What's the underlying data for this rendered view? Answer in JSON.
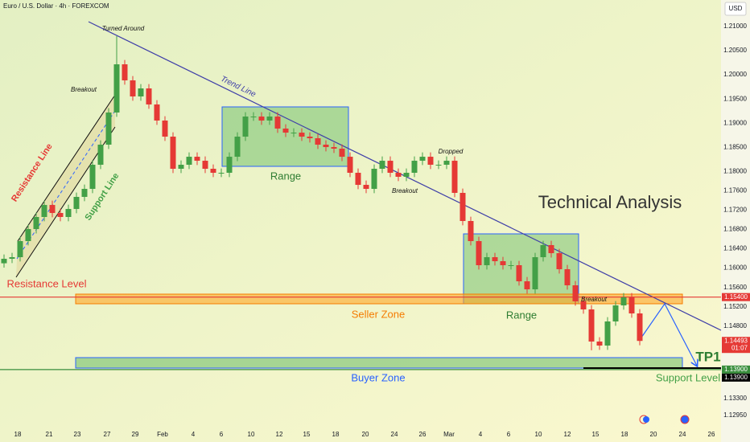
{
  "header": {
    "title": "Euro / U.S. Dollar · 4h · FOREXCOM",
    "currency": "USD"
  },
  "chart_data": {
    "type": "candlestick",
    "open": [
      1.161,
      1.16193,
      1.16226,
      1.16559,
      1.16808,
      1.17058,
      1.17307,
      1.17141,
      1.17058,
      1.17224,
      1.17474,
      1.1764,
      1.18139,
      1.18555,
      1.1922,
      1.20218,
      1.19886,
      1.19553,
      1.19719,
      1.19387,
      1.19054,
      1.18721,
      1.18056,
      1.18139,
      1.18305,
      1.18222,
      1.18056,
      1.17973,
      1.17973,
      1.18305,
      1.18721,
      1.19137,
      1.19137,
      1.19054,
      1.19137,
      1.18888,
      1.18804,
      1.18804,
      1.18721,
      1.18688,
      1.18555,
      1.18505,
      1.18472,
      1.18305,
      1.17973,
      1.17723,
      1.1764,
      1.18056,
      1.18222,
      1.17973,
      1.1789,
      1.17973,
      1.18222,
      1.18305,
      1.18139,
      1.18139,
      1.18222,
      1.17557,
      1.16975,
      1.16559,
      1.1606,
      1.16226,
      1.16143,
      1.1606,
      1.1606,
      1.15727,
      1.15561,
      1.16226,
      1.16476,
      1.16309,
      1.15977,
      1.15644,
      1.15312,
      1.15145,
      1.1448,
      1.14397,
      1.14896,
      1.15228,
      1.15395,
      1.15062
    ],
    "high": [
      1.16283,
      1.16316,
      1.16649,
      1.16898,
      1.17148,
      1.17397,
      1.17397,
      1.17231,
      1.17314,
      1.17564,
      1.1773,
      1.18229,
      1.18645,
      1.1931,
      1.208,
      1.20308,
      1.19976,
      1.19809,
      1.19809,
      1.19477,
      1.19144,
      1.18811,
      1.18229,
      1.18395,
      1.18395,
      1.18312,
      1.18146,
      1.18063,
      1.18395,
      1.18811,
      1.19227,
      1.19227,
      1.19227,
      1.19227,
      1.19227,
      1.18978,
      1.18894,
      1.18894,
      1.18811,
      1.18778,
      1.18645,
      1.18595,
      1.18562,
      1.18395,
      1.18063,
      1.17813,
      1.18146,
      1.18312,
      1.18312,
      1.18063,
      1.18063,
      1.18312,
      1.18395,
      1.18395,
      1.18229,
      1.18312,
      1.18312,
      1.17647,
      1.17065,
      1.16649,
      1.16316,
      1.16316,
      1.16233,
      1.1615,
      1.1615,
      1.15817,
      1.16316,
      1.16566,
      1.16566,
      1.16399,
      1.16067,
      1.15734,
      1.15402,
      1.15235,
      1.1457,
      1.14986,
      1.15318,
      1.15485,
      1.15485,
      1.15152
    ],
    "low": [
      1.1601,
      1.16103,
      1.16136,
      1.16469,
      1.16718,
      1.16968,
      1.17051,
      1.16968,
      1.16968,
      1.17134,
      1.17384,
      1.1755,
      1.18049,
      1.18465,
      1.1913,
      1.19796,
      1.19463,
      1.19463,
      1.19297,
      1.18964,
      1.18631,
      1.17966,
      1.17966,
      1.18049,
      1.18132,
      1.17966,
      1.17883,
      1.17883,
      1.17883,
      1.18215,
      1.18631,
      1.19047,
      1.18964,
      1.18964,
      1.18798,
      1.18714,
      1.18714,
      1.18631,
      1.18598,
      1.18465,
      1.18415,
      1.18382,
      1.18215,
      1.17883,
      1.17633,
      1.1755,
      1.1755,
      1.17966,
      1.17883,
      1.178,
      1.178,
      1.17883,
      1.18132,
      1.18049,
      1.18049,
      1.18049,
      1.17467,
      1.16885,
      1.16469,
      1.1597,
      1.1597,
      1.16053,
      1.1597,
      1.1597,
      1.15637,
      1.15471,
      1.15471,
      1.16136,
      1.16219,
      1.15887,
      1.15554,
      1.15222,
      1.15055,
      1.143,
      1.14307,
      1.14307,
      1.14806,
      1.15138,
      1.14972,
      1.14403
    ],
    "close": [
      1.16193,
      1.16226,
      1.16559,
      1.16808,
      1.17058,
      1.17307,
      1.17141,
      1.17058,
      1.17224,
      1.17474,
      1.1764,
      1.18139,
      1.18555,
      1.1922,
      1.20218,
      1.19886,
      1.19553,
      1.19719,
      1.19387,
      1.19054,
      1.18721,
      1.18056,
      1.18139,
      1.18305,
      1.18222,
      1.18056,
      1.17973,
      1.17973,
      1.18305,
      1.18721,
      1.19137,
      1.19137,
      1.19054,
      1.19137,
      1.18888,
      1.18804,
      1.18804,
      1.18721,
      1.18688,
      1.18555,
      1.18505,
      1.18472,
      1.18305,
      1.17973,
      1.17723,
      1.1764,
      1.18056,
      1.18222,
      1.17973,
      1.1789,
      1.17973,
      1.18222,
      1.18305,
      1.18139,
      1.18139,
      1.18222,
      1.17557,
      1.16975,
      1.16559,
      1.1606,
      1.16226,
      1.16143,
      1.1606,
      1.1606,
      1.15727,
      1.15561,
      1.16226,
      1.16476,
      1.16309,
      1.15977,
      1.15644,
      1.15312,
      1.15145,
      1.1448,
      1.14397,
      1.14896,
      1.15228,
      1.15395,
      1.15062,
      1.14493
    ],
    "up_color": "#43a047",
    "down_color": "#e53935",
    "xlim": [
      -0.5,
      89
    ],
    "xticks": [
      {
        "value": 1.7,
        "label": "18"
      },
      {
        "value": 5.6,
        "label": "21"
      },
      {
        "value": 9.1,
        "label": "23"
      },
      {
        "value": 12.8,
        "label": "27"
      },
      {
        "value": 16.3,
        "label": "29"
      },
      {
        "value": 19.7,
        "label": "Feb"
      },
      {
        "value": 23.5,
        "label": "4"
      },
      {
        "value": 27,
        "label": "6"
      },
      {
        "value": 30.7,
        "label": "10"
      },
      {
        "value": 34.2,
        "label": "12"
      },
      {
        "value": 37.6,
        "label": "15"
      },
      {
        "value": 41.2,
        "label": "18"
      },
      {
        "value": 44.9,
        "label": "20"
      },
      {
        "value": 48.5,
        "label": "24"
      },
      {
        "value": 52,
        "label": "26"
      },
      {
        "value": 55.3,
        "label": "Mar"
      },
      {
        "value": 59.2,
        "label": "4"
      },
      {
        "value": 62.7,
        "label": "6"
      },
      {
        "value": 66.4,
        "label": "10"
      },
      {
        "value": 70,
        "label": "12"
      },
      {
        "value": 73.5,
        "label": "15"
      },
      {
        "value": 77.1,
        "label": "18"
      },
      {
        "value": 80.7,
        "label": "20"
      },
      {
        "value": 84.3,
        "label": "24"
      },
      {
        "value": 87.9,
        "label": "26"
      }
    ],
    "ylim": [
      1.12617,
      1.21549
    ],
    "yticks": [
      {
        "value": 1.21,
        "label": "1.21000"
      },
      {
        "value": 1.205,
        "label": "1.20500"
      },
      {
        "value": 1.2,
        "label": "1.20000"
      },
      {
        "value": 1.195,
        "label": "1.19500"
      },
      {
        "value": 1.19,
        "label": "1.19000"
      },
      {
        "value": 1.185,
        "label": "1.18500"
      },
      {
        "value": 1.18,
        "label": "1.18000"
      },
      {
        "value": 1.176,
        "label": "1.17600"
      },
      {
        "value": 1.172,
        "label": "1.17200"
      },
      {
        "value": 1.168,
        "label": "1.16800"
      },
      {
        "value": 1.164,
        "label": "1.16400"
      },
      {
        "value": 1.16,
        "label": "1.16000"
      },
      {
        "value": 1.156,
        "label": "1.15600"
      },
      {
        "value": 1.152,
        "label": "1.15200"
      },
      {
        "value": 1.148,
        "label": "1.14800"
      },
      {
        "value": 1.133,
        "label": "1.13300"
      },
      {
        "value": 1.1295,
        "label": "1.12950"
      }
    ],
    "price_labels": [
      {
        "value": 1.154,
        "label": "1.15400",
        "color": "#e53935"
      },
      {
        "value": 1.14493,
        "label": "1.14493",
        "color": "#e53935"
      },
      {
        "value": 1.139,
        "label": "1.13900",
        "color": "#388e3c"
      },
      {
        "value": 1.139,
        "label": "1.13900",
        "color": "#000000"
      }
    ],
    "countdown": "01:07"
  },
  "annotations": [
    "Turned Around",
    "Breakout",
    "Trend Line",
    "Resistance Line",
    "Support Line",
    "Range",
    "Dropped",
    "Breakout",
    "Technical Analysis",
    "Resistance Level",
    "Seller Zone",
    "Range",
    "Breakout",
    "TP1",
    "Buyer Zone",
    "Support Level"
  ]
}
